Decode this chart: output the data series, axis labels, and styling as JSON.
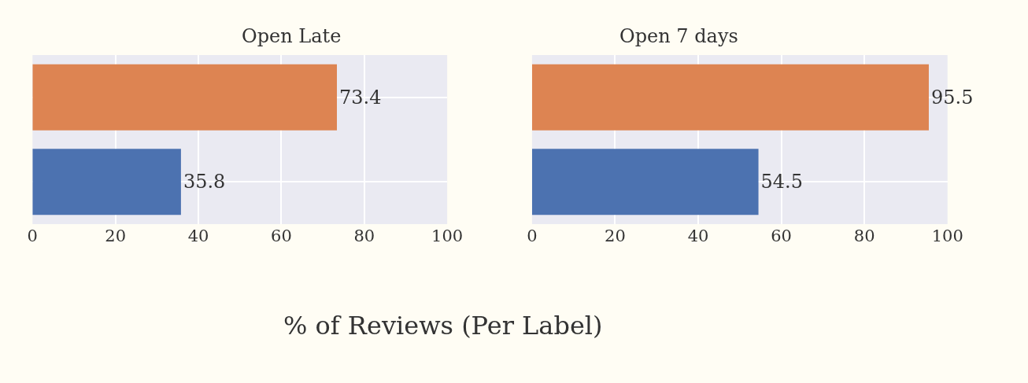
{
  "chart_data": [
    {
      "type": "bar",
      "orientation": "horizontal",
      "title": "Open Late",
      "xlabel": "% of Reviews (Per Label)",
      "categories": [
        null,
        null
      ],
      "values": [
        73.4,
        35.8
      ],
      "colors": [
        "#dd8452",
        "#4c72b0"
      ],
      "xlim": [
        0,
        100
      ],
      "xticks": [
        0,
        20,
        40,
        60,
        80,
        100
      ],
      "grid": true,
      "data_labels": true,
      "tick_labels": "x"
    },
    {
      "type": "bar",
      "orientation": "horizontal",
      "title": "Open 7 days",
      "categories": [
        null,
        null
      ],
      "values": [
        95.5,
        54.5
      ],
      "colors": [
        "#dd8452",
        "#4c72b0"
      ],
      "xlim": [
        0,
        100
      ],
      "xticks": [
        0,
        20,
        40,
        60,
        80,
        100
      ],
      "grid": true,
      "data_labels": true,
      "tick_labels": "x"
    }
  ]
}
